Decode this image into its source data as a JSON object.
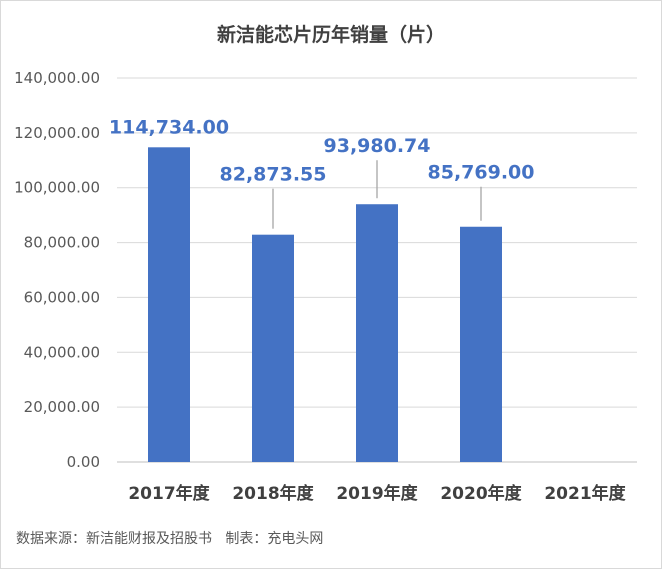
{
  "chart_data": {
    "type": "bar",
    "title": "新洁能芯片历年销量（片）",
    "categories": [
      "2017年度",
      "2018年度",
      "2019年度",
      "2020年度",
      "2021年度"
    ],
    "values": [
      114734.0,
      82873.55,
      93980.74,
      85769.0,
      null
    ],
    "data_labels": [
      "114,734.00",
      "82,873.55",
      "93,980.74",
      "85,769.00",
      ""
    ],
    "ylim": [
      0,
      140000
    ],
    "yticks": [
      0,
      20000,
      40000,
      60000,
      80000,
      100000,
      120000,
      140000
    ],
    "ytick_labels": [
      "0.00",
      "20,000.00",
      "40,000.00",
      "60,000.00",
      "80,000.00",
      "100,000.00",
      "120,000.00",
      "140,000.00"
    ],
    "grid": true,
    "bar_color": "#4472c4",
    "label_color": "#4472c4",
    "xlabel": "",
    "ylabel": ""
  },
  "footer": {
    "source": "数据来源：新洁能财报及招股书   制表：充电头网"
  }
}
